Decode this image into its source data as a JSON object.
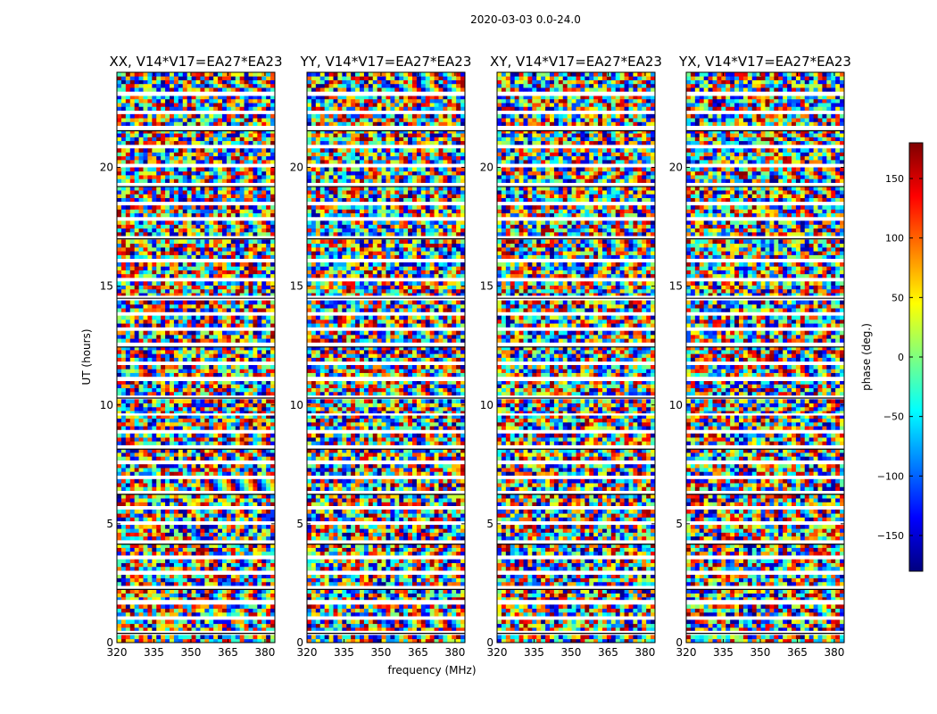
{
  "figure": {
    "title": "2020-03-03 0.0-24.0"
  },
  "chart_data": {
    "type": "heatmap",
    "title": "2020-03-03 0.0-24.0",
    "xlabel": "frequency (MHz)",
    "ylabel": "UT (hours)",
    "xlim": [
      320,
      384
    ],
    "ylim": [
      0,
      24
    ],
    "xticks": [
      320,
      335,
      350,
      365,
      380
    ],
    "yticks": [
      0,
      5,
      10,
      15,
      20
    ],
    "panels": [
      {
        "title": "XX, V14*V17=EA27*EA23",
        "pol": "XX"
      },
      {
        "title": "YY, V14*V17=EA27*EA23",
        "pol": "YY"
      },
      {
        "title": "XY, V14*V17=EA27*EA23",
        "pol": "XY"
      },
      {
        "title": "YX, V14*V17=EA27*EA23",
        "pol": "YX"
      }
    ],
    "colorbar": {
      "label": "phase (deg.)",
      "range": [
        -180,
        180
      ],
      "ticks": [
        150,
        100,
        50,
        0,
        -50,
        -100,
        -150
      ],
      "tick_labels": [
        "150",
        "100",
        "50",
        "0",
        "−50",
        "−100",
        "−150"
      ],
      "colormap": "jet",
      "colors": [
        "#00007f",
        "#0000ff",
        "#007fff",
        "#00ffff",
        "#7fff7f",
        "#ffff00",
        "#ff7f00",
        "#ff0000",
        "#7f0000"
      ]
    },
    "flagged_hours": [
      0.45,
      1.05,
      1.75,
      2.3,
      2.9,
      3.55,
      4.2,
      5.0,
      5.7,
      6.3,
      6.95,
      7.55,
      8.2,
      8.9,
      9.6,
      10.35,
      11.05,
      11.75,
      12.5,
      13.2,
      13.85,
      14.55,
      15.3,
      16.1,
      17.05,
      17.8,
      18.5,
      19.25,
      20.1,
      20.85,
      21.6,
      22.3,
      23.05
    ]
  }
}
